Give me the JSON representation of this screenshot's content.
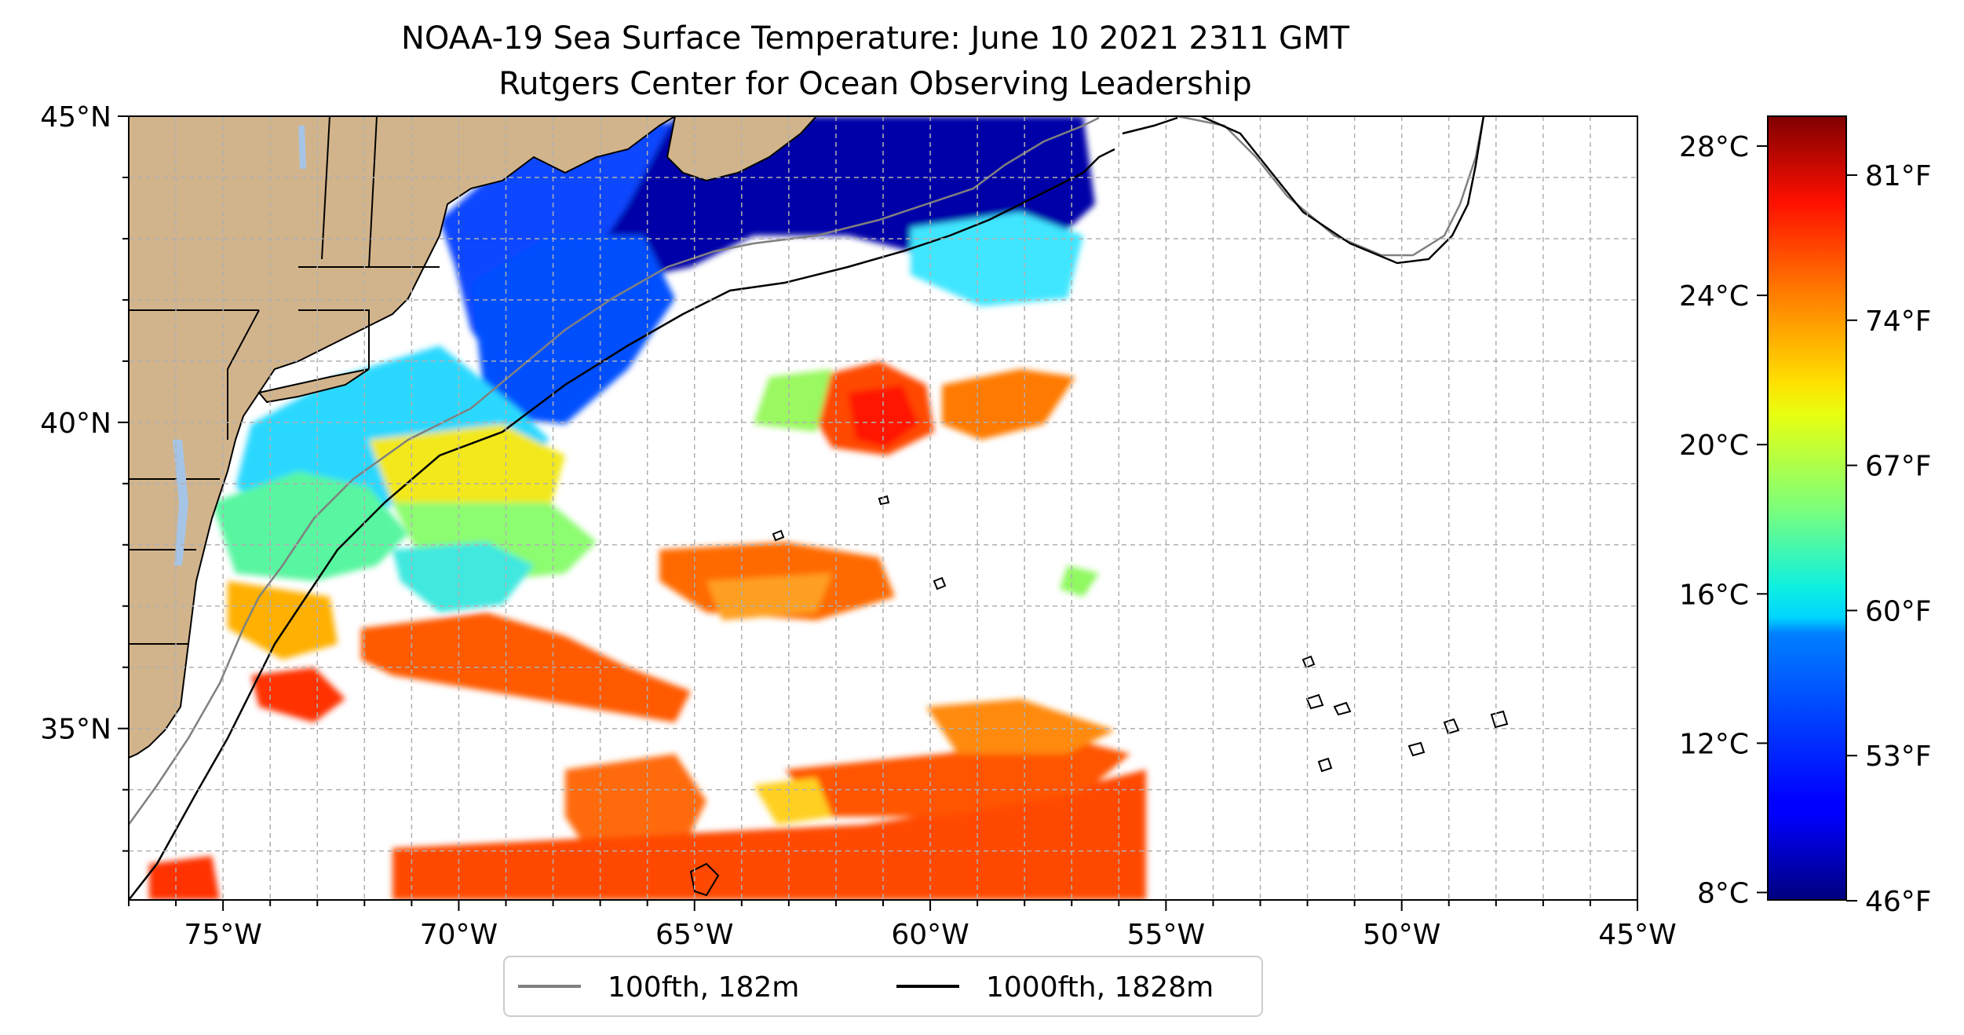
{
  "title": {
    "line1": "NOAA-19 Sea Surface Temperature: June 10 2021 2311 GMT",
    "line2": "Rutgers Center for Ocean Observing Leadership"
  },
  "map": {
    "lon_range": [
      -77,
      -45
    ],
    "lat_range": [
      32.2,
      45
    ],
    "lon_ticks": [
      {
        "value": -75,
        "label": "75°W"
      },
      {
        "value": -70,
        "label": "70°W"
      },
      {
        "value": -65,
        "label": "65°W"
      },
      {
        "value": -60,
        "label": "60°W"
      },
      {
        "value": -55,
        "label": "55°W"
      },
      {
        "value": -50,
        "label": "50°W"
      },
      {
        "value": -45,
        "label": "45°W"
      }
    ],
    "lat_ticks": [
      {
        "value": 45,
        "label": "45°N"
      },
      {
        "value": 40,
        "label": "40°N"
      },
      {
        "value": 35,
        "label": "35°N"
      }
    ],
    "grid": true,
    "grid_spacing_deg": 1,
    "colors": {
      "land": "#d2b48c",
      "lake": "#a6c4e6",
      "isobath_100fth": "#808080",
      "isobath_1000fth": "#000000"
    }
  },
  "legend": {
    "placement": "bottom-center",
    "entries": [
      {
        "label": "100fth, 182m",
        "color": "#808080"
      },
      {
        "label": "1000fth, 1828m",
        "color": "#000000"
      }
    ]
  },
  "colorbar": {
    "colormap": "jet",
    "celsius_range": [
      7.8,
      28.8
    ],
    "celsius_ticks": [
      {
        "value": 8,
        "label": "8°C"
      },
      {
        "value": 12,
        "label": "12°C"
      },
      {
        "value": 16,
        "label": "16°C"
      },
      {
        "value": 20,
        "label": "20°C"
      },
      {
        "value": 24,
        "label": "24°C"
      },
      {
        "value": 28,
        "label": "28°C"
      }
    ],
    "fahrenheit_ticks": [
      {
        "value": 46,
        "label": "46°F"
      },
      {
        "value": 53,
        "label": "53°F"
      },
      {
        "value": 60,
        "label": "60°F"
      },
      {
        "value": 67,
        "label": "67°F"
      },
      {
        "value": 74,
        "label": "74°F"
      },
      {
        "value": 81,
        "label": "81°F"
      }
    ]
  }
}
